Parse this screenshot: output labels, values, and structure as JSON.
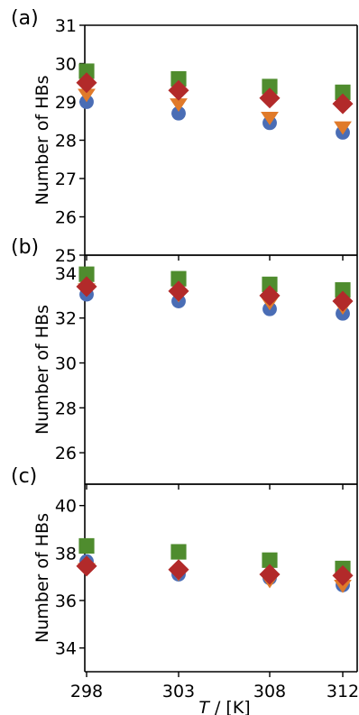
{
  "chart_data": [
    {
      "type": "scatter",
      "panel_label": "(a)",
      "ylabel": "Number of HBs",
      "xlabel": "",
      "x_categories": [
        "298",
        "303",
        "308",
        "312"
      ],
      "ylim": [
        25,
        31
      ],
      "yticks": [
        25,
        26,
        27,
        28,
        29,
        30,
        31
      ],
      "series": [
        {
          "marker": "circle",
          "color": "#4a6db5",
          "values": [
            29.0,
            28.7,
            28.45,
            28.2
          ]
        },
        {
          "marker": "square",
          "color": "#4f8c2e",
          "values": [
            29.8,
            29.6,
            29.4,
            29.25
          ]
        },
        {
          "marker": "triangle-down",
          "color": "#e07a2a",
          "values": [
            29.2,
            28.95,
            28.6,
            28.35
          ]
        },
        {
          "marker": "diamond",
          "color": "#b22a2a",
          "values": [
            29.5,
            29.3,
            29.1,
            28.95
          ]
        }
      ]
    },
    {
      "type": "scatter",
      "panel_label": "(b)",
      "ylabel": "Number of HBs",
      "xlabel": "",
      "x_categories": [
        "298",
        "303",
        "308",
        "312"
      ],
      "ylim": [
        24.6,
        34.8
      ],
      "yticks": [
        26,
        28,
        30,
        32,
        34
      ],
      "series": [
        {
          "marker": "circle",
          "color": "#4a6db5",
          "values": [
            33.05,
            32.75,
            32.4,
            32.2
          ]
        },
        {
          "marker": "square",
          "color": "#4f8c2e",
          "values": [
            33.95,
            33.75,
            33.5,
            33.25
          ]
        },
        {
          "marker": "triangle-down",
          "color": "#e07a2a",
          "values": [
            33.3,
            33.05,
            32.7,
            32.5
          ]
        },
        {
          "marker": "diamond",
          "color": "#b22a2a",
          "values": [
            33.4,
            33.2,
            33.0,
            32.75
          ]
        }
      ]
    },
    {
      "type": "scatter",
      "panel_label": "(c)",
      "ylabel": "Number of HBs",
      "xlabel": "T / [K]",
      "x_categories": [
        "298",
        "303",
        "308",
        "312"
      ],
      "ylim": [
        33.0,
        40.9
      ],
      "yticks": [
        34,
        36,
        38,
        40
      ],
      "series": [
        {
          "marker": "circle",
          "color": "#4a6db5",
          "values": [
            37.65,
            37.1,
            36.95,
            36.65
          ]
        },
        {
          "marker": "square",
          "color": "#4f8c2e",
          "values": [
            38.3,
            38.05,
            37.7,
            37.35
          ]
        },
        {
          "marker": "triangle-down",
          "color": "#e07a2a",
          "values": [
            37.35,
            37.15,
            36.85,
            36.65
          ]
        },
        {
          "marker": "diamond",
          "color": "#b22a2a",
          "values": [
            37.45,
            37.3,
            37.1,
            37.05
          ]
        }
      ]
    }
  ]
}
